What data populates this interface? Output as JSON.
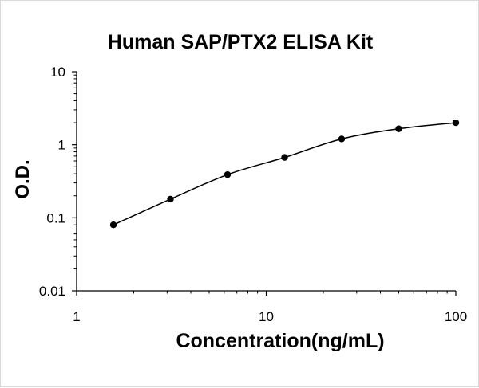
{
  "chart_data": {
    "type": "scatter",
    "title": "Human SAP/PTX2 ELISA Kit",
    "xlabel": "Concentration(ng/mL)",
    "ylabel": "O.D.",
    "x_scale": "log",
    "y_scale": "log",
    "xlim": [
      1,
      100
    ],
    "ylim": [
      0.01,
      10
    ],
    "x_ticks": [
      "1",
      "10",
      "100"
    ],
    "y_ticks": [
      "0.01",
      "0.1",
      "1",
      "10"
    ],
    "grid": false,
    "legend": "none",
    "smooth_fit_line": true,
    "series": [
      {
        "x": [
          1.5625,
          3.125,
          6.25,
          12.5,
          25,
          50,
          100
        ],
        "y": [
          0.08,
          0.18,
          0.39,
          0.67,
          1.2,
          1.65,
          2.0
        ]
      }
    ],
    "colors": {
      "points": "#000000",
      "line": "#000000",
      "axis": "#000000"
    }
  }
}
